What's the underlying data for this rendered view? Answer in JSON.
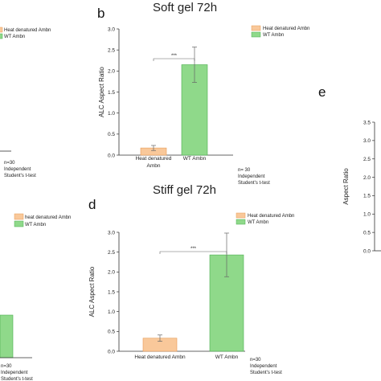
{
  "colors": {
    "heat": "#F9C89A",
    "heat_stroke": "#E79B55",
    "wt": "#8FD98A",
    "wt_stroke": "#4CAF50",
    "axis": "#333333"
  },
  "panels": {
    "b": "b",
    "d": "d",
    "e": "e"
  },
  "chart_data": [
    {
      "id": "b",
      "type": "bar",
      "title": "Soft gel 72h",
      "ylabel": "ALC Aspect Ratio",
      "categories": [
        "Heat denatured Ambn",
        "WT Ambn"
      ],
      "category_lines": [
        [
          "Heat denatured",
          "Ambn"
        ],
        [
          "WT Ambn"
        ]
      ],
      "values": [
        0.17,
        2.15
      ],
      "errors": [
        0.06,
        0.42
      ],
      "ylim": [
        0,
        3.0
      ],
      "yticks": [
        "0.0",
        "0.5",
        "1.0",
        "1.5",
        "2.0",
        "2.5",
        "3.0"
      ],
      "significance": "***",
      "legend": [
        "Heat denatured Ambn",
        "WT Ambn"
      ],
      "legend_position": "top-right",
      "note": [
        "n= 30",
        "Independent",
        "Student's t-test"
      ]
    },
    {
      "id": "d",
      "type": "bar",
      "title": "Stiff gel 72h",
      "ylabel": "ALC Aspect Ratio",
      "categories": [
        "Heat denatured Ambn",
        "WT Ambn"
      ],
      "category_lines": [
        [
          "Heat denatured Ambn"
        ],
        [
          "WT Ambn"
        ]
      ],
      "values": [
        0.33,
        2.43
      ],
      "errors": [
        0.08,
        0.55
      ],
      "ylim": [
        0,
        3.0
      ],
      "yticks": [
        "0.0",
        "0.5",
        "1.0",
        "1.5",
        "2.0",
        "2.5",
        "3.0"
      ],
      "significance": "***",
      "legend": [
        "Heat denatured Ambn",
        "WT Ambn"
      ],
      "legend_position": "top-right",
      "note": [
        "n=30",
        "Independent",
        "Student's t-test"
      ]
    },
    {
      "id": "e",
      "type": "bar",
      "ylabel": "Aspect Ratio",
      "ylim": [
        0,
        3.5
      ],
      "yticks": [
        "0.0",
        "0.5",
        "1.0",
        "1.5",
        "2.0",
        "2.5",
        "3.0",
        "3.5"
      ],
      "partial": true
    },
    {
      "id": "left-top-fragment",
      "type": "bar",
      "legend": [
        "Heat denatured Ambn",
        "WT Ambn"
      ],
      "note": [
        "n=30",
        "Independent",
        "Student's t-test"
      ],
      "partial": true
    },
    {
      "id": "left-bottom-fragment",
      "type": "bar",
      "legend": [
        "heat denatured Ambn",
        "WT Ambn"
      ],
      "note": [
        "n=30",
        "Independent",
        "Student's t-test"
      ],
      "partial": true
    }
  ]
}
